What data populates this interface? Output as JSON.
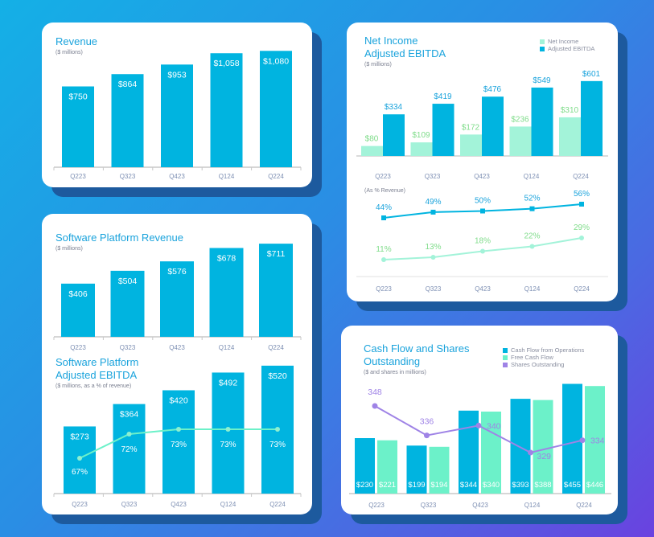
{
  "colors": {
    "cyan": "#00b4e0",
    "mint": "#a3f3d9",
    "fcf": "#6cf1c9",
    "purple": "#9f83e6",
    "title": "#1aa3dc",
    "ni_label": "#7fdc8a"
  },
  "chart_data": [
    {
      "type": "bar",
      "title": "Revenue",
      "subtitle": "($ millions)",
      "categories": [
        "Q223",
        "Q323",
        "Q423",
        "Q124",
        "Q224"
      ],
      "values": [
        750,
        864,
        953,
        1058,
        1080
      ],
      "labels": [
        "$750",
        "$864",
        "$953",
        "$1,058",
        "$1,080"
      ]
    },
    {
      "type": "bar",
      "title": "Software Platform Revenue",
      "subtitle": "($ millions)",
      "categories": [
        "Q223",
        "Q323",
        "Q423",
        "Q124",
        "Q224"
      ],
      "values": [
        406,
        504,
        576,
        678,
        711
      ],
      "labels": [
        "$406",
        "$504",
        "$576",
        "$678",
        "$711"
      ]
    },
    {
      "type": "bar",
      "title_line1": "Software Platform",
      "title_line2": "Adjusted EBITDA",
      "subtitle": "($ millions, as a % of revenue)",
      "categories": [
        "Q223",
        "Q323",
        "Q423",
        "Q124",
        "Q224"
      ],
      "values": [
        273,
        364,
        420,
        492,
        520
      ],
      "labels": [
        "$273",
        "$364",
        "$420",
        "$492",
        "$520"
      ],
      "margin_pct": [
        67,
        72,
        73,
        73,
        73
      ],
      "margin_labels": [
        "67%",
        "72%",
        "73%",
        "73%",
        "73%"
      ]
    },
    {
      "type": "bar",
      "title_line1": "Net Income",
      "title_line2": "Adjusted EBITDA",
      "subtitle": "($ millions)",
      "categories": [
        "Q223",
        "Q323",
        "Q423",
        "Q124",
        "Q224"
      ],
      "legend": [
        "Net Income",
        "Adjusted EBITDA"
      ],
      "series": [
        {
          "name": "Net Income",
          "values": [
            80,
            109,
            172,
            236,
            310
          ],
          "labels": [
            "$80",
            "$109",
            "$172",
            "$236",
            "$310"
          ]
        },
        {
          "name": "Adjusted EBITDA",
          "values": [
            334,
            419,
            476,
            549,
            601
          ],
          "labels": [
            "$334",
            "$419",
            "$476",
            "$549",
            "$601"
          ]
        }
      ]
    },
    {
      "type": "line",
      "subtitle": "(As % Revenue)",
      "categories": [
        "Q223",
        "Q323",
        "Q423",
        "Q124",
        "Q224"
      ],
      "series": [
        {
          "name": "Adjusted EBITDA",
          "values": [
            44,
            49,
            50,
            52,
            56
          ],
          "labels": [
            "44%",
            "49%",
            "50%",
            "52%",
            "56%"
          ]
        },
        {
          "name": "Net Income",
          "values": [
            11,
            13,
            18,
            22,
            29
          ],
          "labels": [
            "11%",
            "13%",
            "18%",
            "22%",
            "29%"
          ]
        }
      ]
    },
    {
      "type": "bar",
      "title_line1": "Cash Flow and Shares",
      "title_line2": "Outstanding",
      "subtitle": "($ and shares in millions)",
      "categories": [
        "Q223",
        "Q323",
        "Q423",
        "Q124",
        "Q224"
      ],
      "legend": [
        "Cash Flow from Operations",
        "Free Cash Flow",
        "Shares Outstanding"
      ],
      "series": [
        {
          "name": "Cash Flow from Operations",
          "values": [
            230,
            199,
            344,
            393,
            455
          ],
          "labels": [
            "$230",
            "$199",
            "$344",
            "$393",
            "$455"
          ]
        },
        {
          "name": "Free Cash Flow",
          "values": [
            221,
            194,
            340,
            388,
            446
          ],
          "labels": [
            "$221",
            "$194",
            "$340",
            "$388",
            "$446"
          ]
        },
        {
          "name": "Shares Outstanding",
          "values": [
            348,
            336,
            340,
            329,
            334
          ],
          "labels": [
            "348",
            "336",
            "340",
            "329",
            "334"
          ]
        }
      ]
    }
  ]
}
